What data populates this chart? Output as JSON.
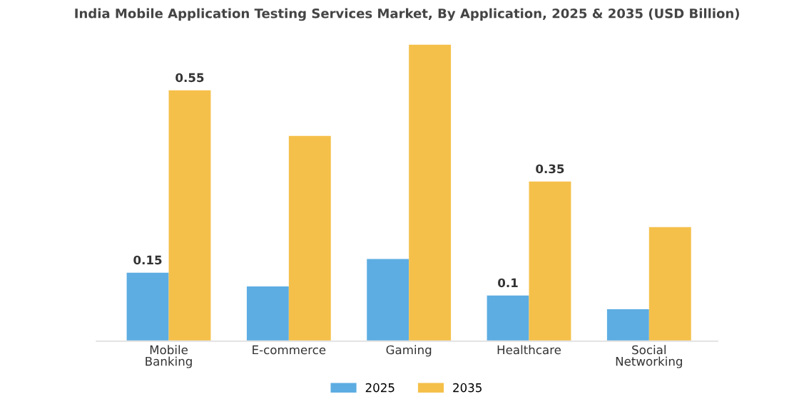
{
  "chart_data": {
    "type": "bar",
    "title": "India Mobile Application Testing Services Market, By Application, 2025 & 2035 (USD Billion)",
    "categories": [
      "Mobile\nBanking",
      "E-commerce",
      "Gaming",
      "Healthcare",
      "Social\nNetworking"
    ],
    "series": [
      {
        "name": "2025",
        "color": "#5dade2",
        "values": [
          0.15,
          0.12,
          0.18,
          0.1,
          0.07
        ],
        "value_labels": [
          "0.15",
          null,
          null,
          "0.1",
          null
        ]
      },
      {
        "name": "2035",
        "color": "#f5c04a",
        "values": [
          0.55,
          0.45,
          0.65,
          0.35,
          0.25
        ],
        "value_labels": [
          "0.55",
          null,
          null,
          "0.35",
          null
        ]
      }
    ],
    "tick_labels": "x",
    "grid": false,
    "legend": "bottom"
  }
}
